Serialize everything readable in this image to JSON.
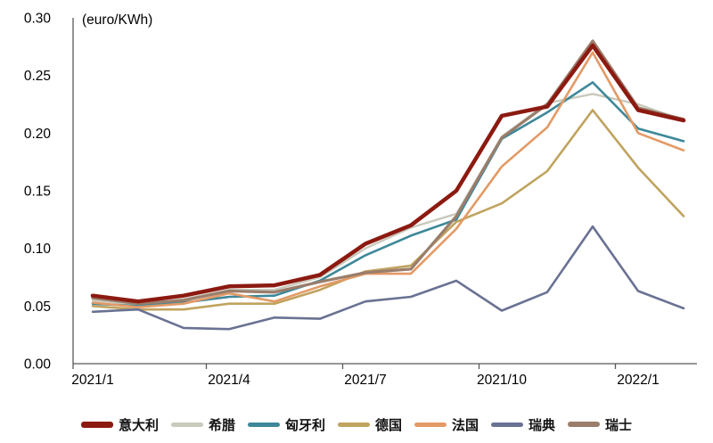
{
  "chart_data": {
    "type": "line",
    "title": "",
    "unit_label": "(euro/KWh)",
    "xlabel": "",
    "ylabel": "euro/KWh",
    "x": [
      "2021/1",
      "2021/2",
      "2021/3",
      "2021/4",
      "2021/5",
      "2021/6",
      "2021/7",
      "2021/8",
      "2021/9",
      "2021/10",
      "2021/11",
      "2021/12",
      "2022/1",
      "2022/2"
    ],
    "x_tick_labels": [
      "2021/1",
      "2021/4",
      "2021/7",
      "2021/10",
      "2022/1"
    ],
    "x_tick_month_indices": [
      0,
      3,
      6,
      9,
      12
    ],
    "ylim": [
      0,
      0.3
    ],
    "y_ticks": [
      "0.00",
      "0.05",
      "0.10",
      "0.15",
      "0.20",
      "0.25",
      "0.30"
    ],
    "grid": false,
    "legend_position": "bottom",
    "series": [
      {
        "name": "意大利",
        "color": "#8C1A11",
        "width": 4.5,
        "values": [
          0.059,
          0.054,
          0.059,
          0.067,
          0.068,
          0.077,
          0.104,
          0.12,
          0.15,
          0.215,
          0.223,
          0.276,
          0.22,
          0.211
        ]
      },
      {
        "name": "希腊",
        "color": "#C9C9BC",
        "width": 2.4,
        "values": [
          0.055,
          0.051,
          0.056,
          0.064,
          0.064,
          0.075,
          0.1,
          0.118,
          0.13,
          0.197,
          0.226,
          0.234,
          0.225,
          0.211
        ]
      },
      {
        "name": "匈牙利",
        "color": "#3D8899",
        "width": 2.6,
        "values": [
          0.052,
          0.05,
          0.053,
          0.058,
          0.059,
          0.072,
          0.094,
          0.111,
          0.125,
          0.195,
          0.218,
          0.244,
          0.204,
          0.193
        ]
      },
      {
        "name": "德国",
        "color": "#C0A35E",
        "width": 2.6,
        "values": [
          0.05,
          0.047,
          0.047,
          0.052,
          0.052,
          0.064,
          0.08,
          0.085,
          0.123,
          0.139,
          0.167,
          0.22,
          0.17,
          0.128
        ]
      },
      {
        "name": "法国",
        "color": "#E39A66",
        "width": 2.6,
        "values": [
          0.053,
          0.049,
          0.052,
          0.061,
          0.054,
          0.067,
          0.078,
          0.078,
          0.117,
          0.171,
          0.205,
          0.27,
          0.2,
          0.185
        ]
      },
      {
        "name": "瑞典",
        "color": "#6A7293",
        "width": 2.6,
        "values": [
          0.045,
          0.047,
          0.031,
          0.03,
          0.04,
          0.039,
          0.054,
          0.058,
          0.072,
          0.046,
          0.062,
          0.119,
          0.063,
          0.048
        ]
      },
      {
        "name": "瑞士",
        "color": "#9A7D6B",
        "width": 3.2,
        "values": [
          0.057,
          0.052,
          0.055,
          0.063,
          0.062,
          0.071,
          0.079,
          0.082,
          0.128,
          0.196,
          0.225,
          0.28,
          0.222,
          0.212
        ]
      }
    ]
  }
}
